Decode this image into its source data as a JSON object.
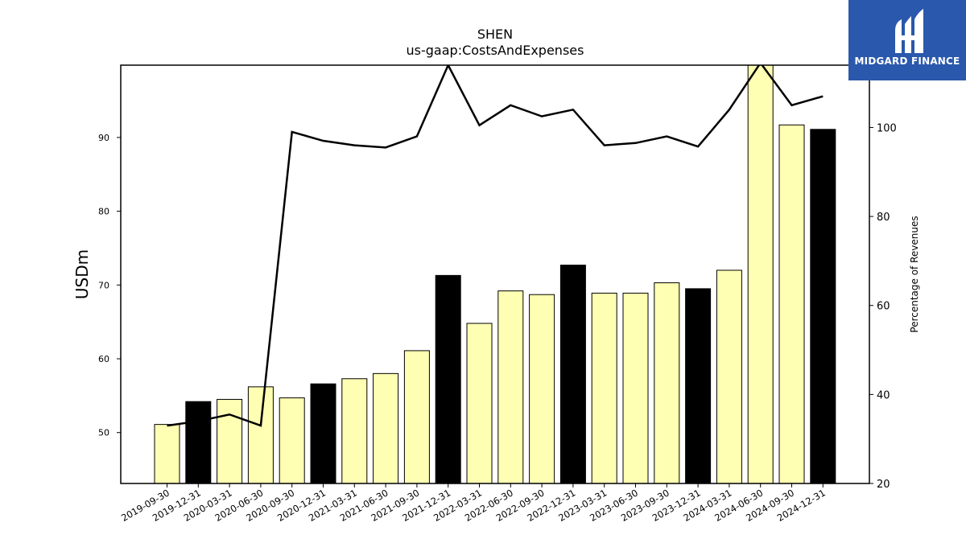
{
  "chart_data": {
    "type": "bar",
    "title": "SHEN",
    "subtitle": "us-gaap:CostsAndExpenses",
    "ylabel": "USDm",
    "y2label": "Percentage of Revenues",
    "ylim": [
      43.1,
      99.8
    ],
    "y2lim": [
      20,
      114
    ],
    "yticks": [
      50,
      60,
      70,
      80,
      90
    ],
    "y2ticks": [
      20,
      40,
      60,
      80,
      100
    ],
    "categories": [
      "2019-09-30",
      "2019-12-31",
      "2020-03-31",
      "2020-06-30",
      "2020-09-30",
      "2020-12-31",
      "2021-03-31",
      "2021-06-30",
      "2021-09-30",
      "2021-12-31",
      "2022-03-31",
      "2022-06-30",
      "2022-09-30",
      "2022-12-31",
      "2023-03-31",
      "2023-06-30",
      "2023-09-30",
      "2023-12-31",
      "2024-03-31",
      "2024-06-30",
      "2024-09-30",
      "2024-12-31"
    ],
    "series": [
      {
        "type": "bar",
        "axis": "left",
        "values": [
          51.1,
          54.2,
          54.5,
          56.2,
          54.7,
          56.6,
          57.3,
          58.0,
          61.1,
          71.3,
          64.8,
          69.2,
          68.7,
          72.7,
          68.9,
          68.9,
          70.3,
          69.5,
          72.0,
          101.0,
          91.7,
          91.1
        ],
        "fill": [
          "#ffffb3",
          "#000000",
          "#ffffb3",
          "#ffffb3",
          "#ffffb3",
          "#000000",
          "#ffffb3",
          "#ffffb3",
          "#ffffb3",
          "#000000",
          "#ffffb3",
          "#ffffb3",
          "#ffffb3",
          "#000000",
          "#ffffb3",
          "#ffffb3",
          "#ffffb3",
          "#000000",
          "#ffffb3",
          "#ffffb3",
          "#ffffb3",
          "#000000"
        ]
      },
      {
        "type": "line",
        "axis": "right",
        "color": "#000000",
        "values": [
          33.0,
          34.0,
          35.5,
          33.0,
          99.0,
          97.0,
          96.0,
          95.5,
          98.0,
          114.0,
          100.5,
          105.0,
          102.5,
          104.0,
          96.0,
          96.5,
          98.0,
          95.7,
          104.0,
          114.5,
          105.0,
          107.0
        ]
      }
    ],
    "grid": false
  },
  "logo": {
    "text": "MIDGARD FINANCE",
    "background": "#2a58ac",
    "icon": "midgard-logo-icon"
  }
}
